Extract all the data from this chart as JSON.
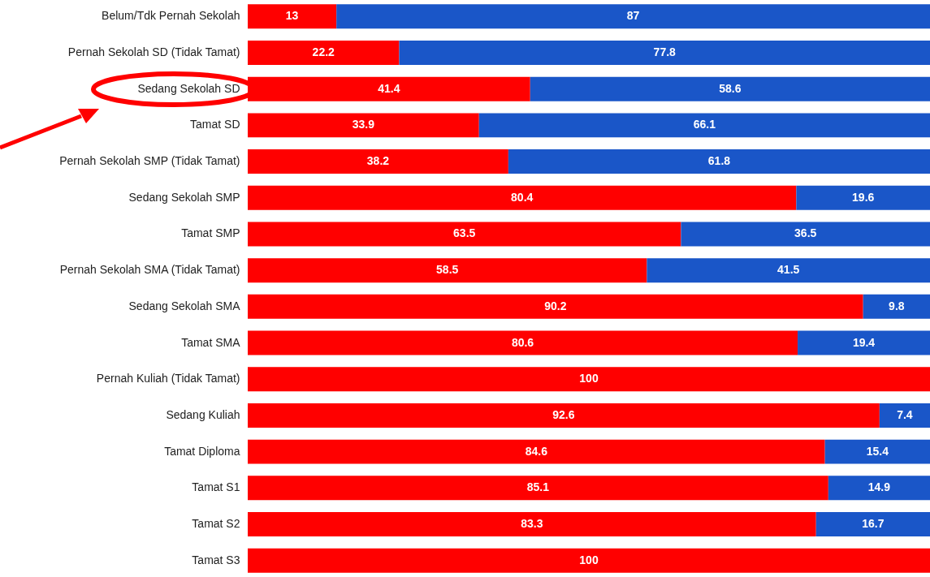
{
  "chart_data": {
    "type": "bar",
    "orientation": "horizontal",
    "stacked": true,
    "data_labels": true,
    "tick_labels": "y",
    "xlim": [
      0,
      100
    ],
    "categories": [
      "Belum/Tdk Pernah Sekolah",
      "Pernah Sekolah SD (Tidak Tamat)",
      "Sedang Sekolah SD",
      "Tamat SD",
      "Pernah Sekolah SMP (Tidak Tamat)",
      "Sedang Sekolah SMP",
      "Tamat SMP",
      "Pernah Sekolah SMA (Tidak Tamat)",
      "Sedang Sekolah SMA",
      "Tamat SMA",
      "Pernah Kuliah (Tidak Tamat)",
      "Sedang Kuliah",
      "Tamat Diploma",
      "Tamat S1",
      "Tamat S2",
      "Tamat S3"
    ],
    "series": [
      {
        "color": "#ff0000",
        "values": [
          13,
          22.2,
          41.4,
          33.9,
          38.2,
          80.4,
          63.5,
          58.5,
          90.2,
          80.6,
          100,
          92.6,
          84.6,
          85.1,
          83.3,
          100
        ]
      },
      {
        "color": "#1a56c8",
        "values": [
          87,
          77.8,
          58.6,
          66.1,
          61.8,
          19.6,
          36.5,
          41.5,
          9.8,
          19.4,
          null,
          7.4,
          15.4,
          14.9,
          16.7,
          null
        ]
      }
    ]
  }
}
